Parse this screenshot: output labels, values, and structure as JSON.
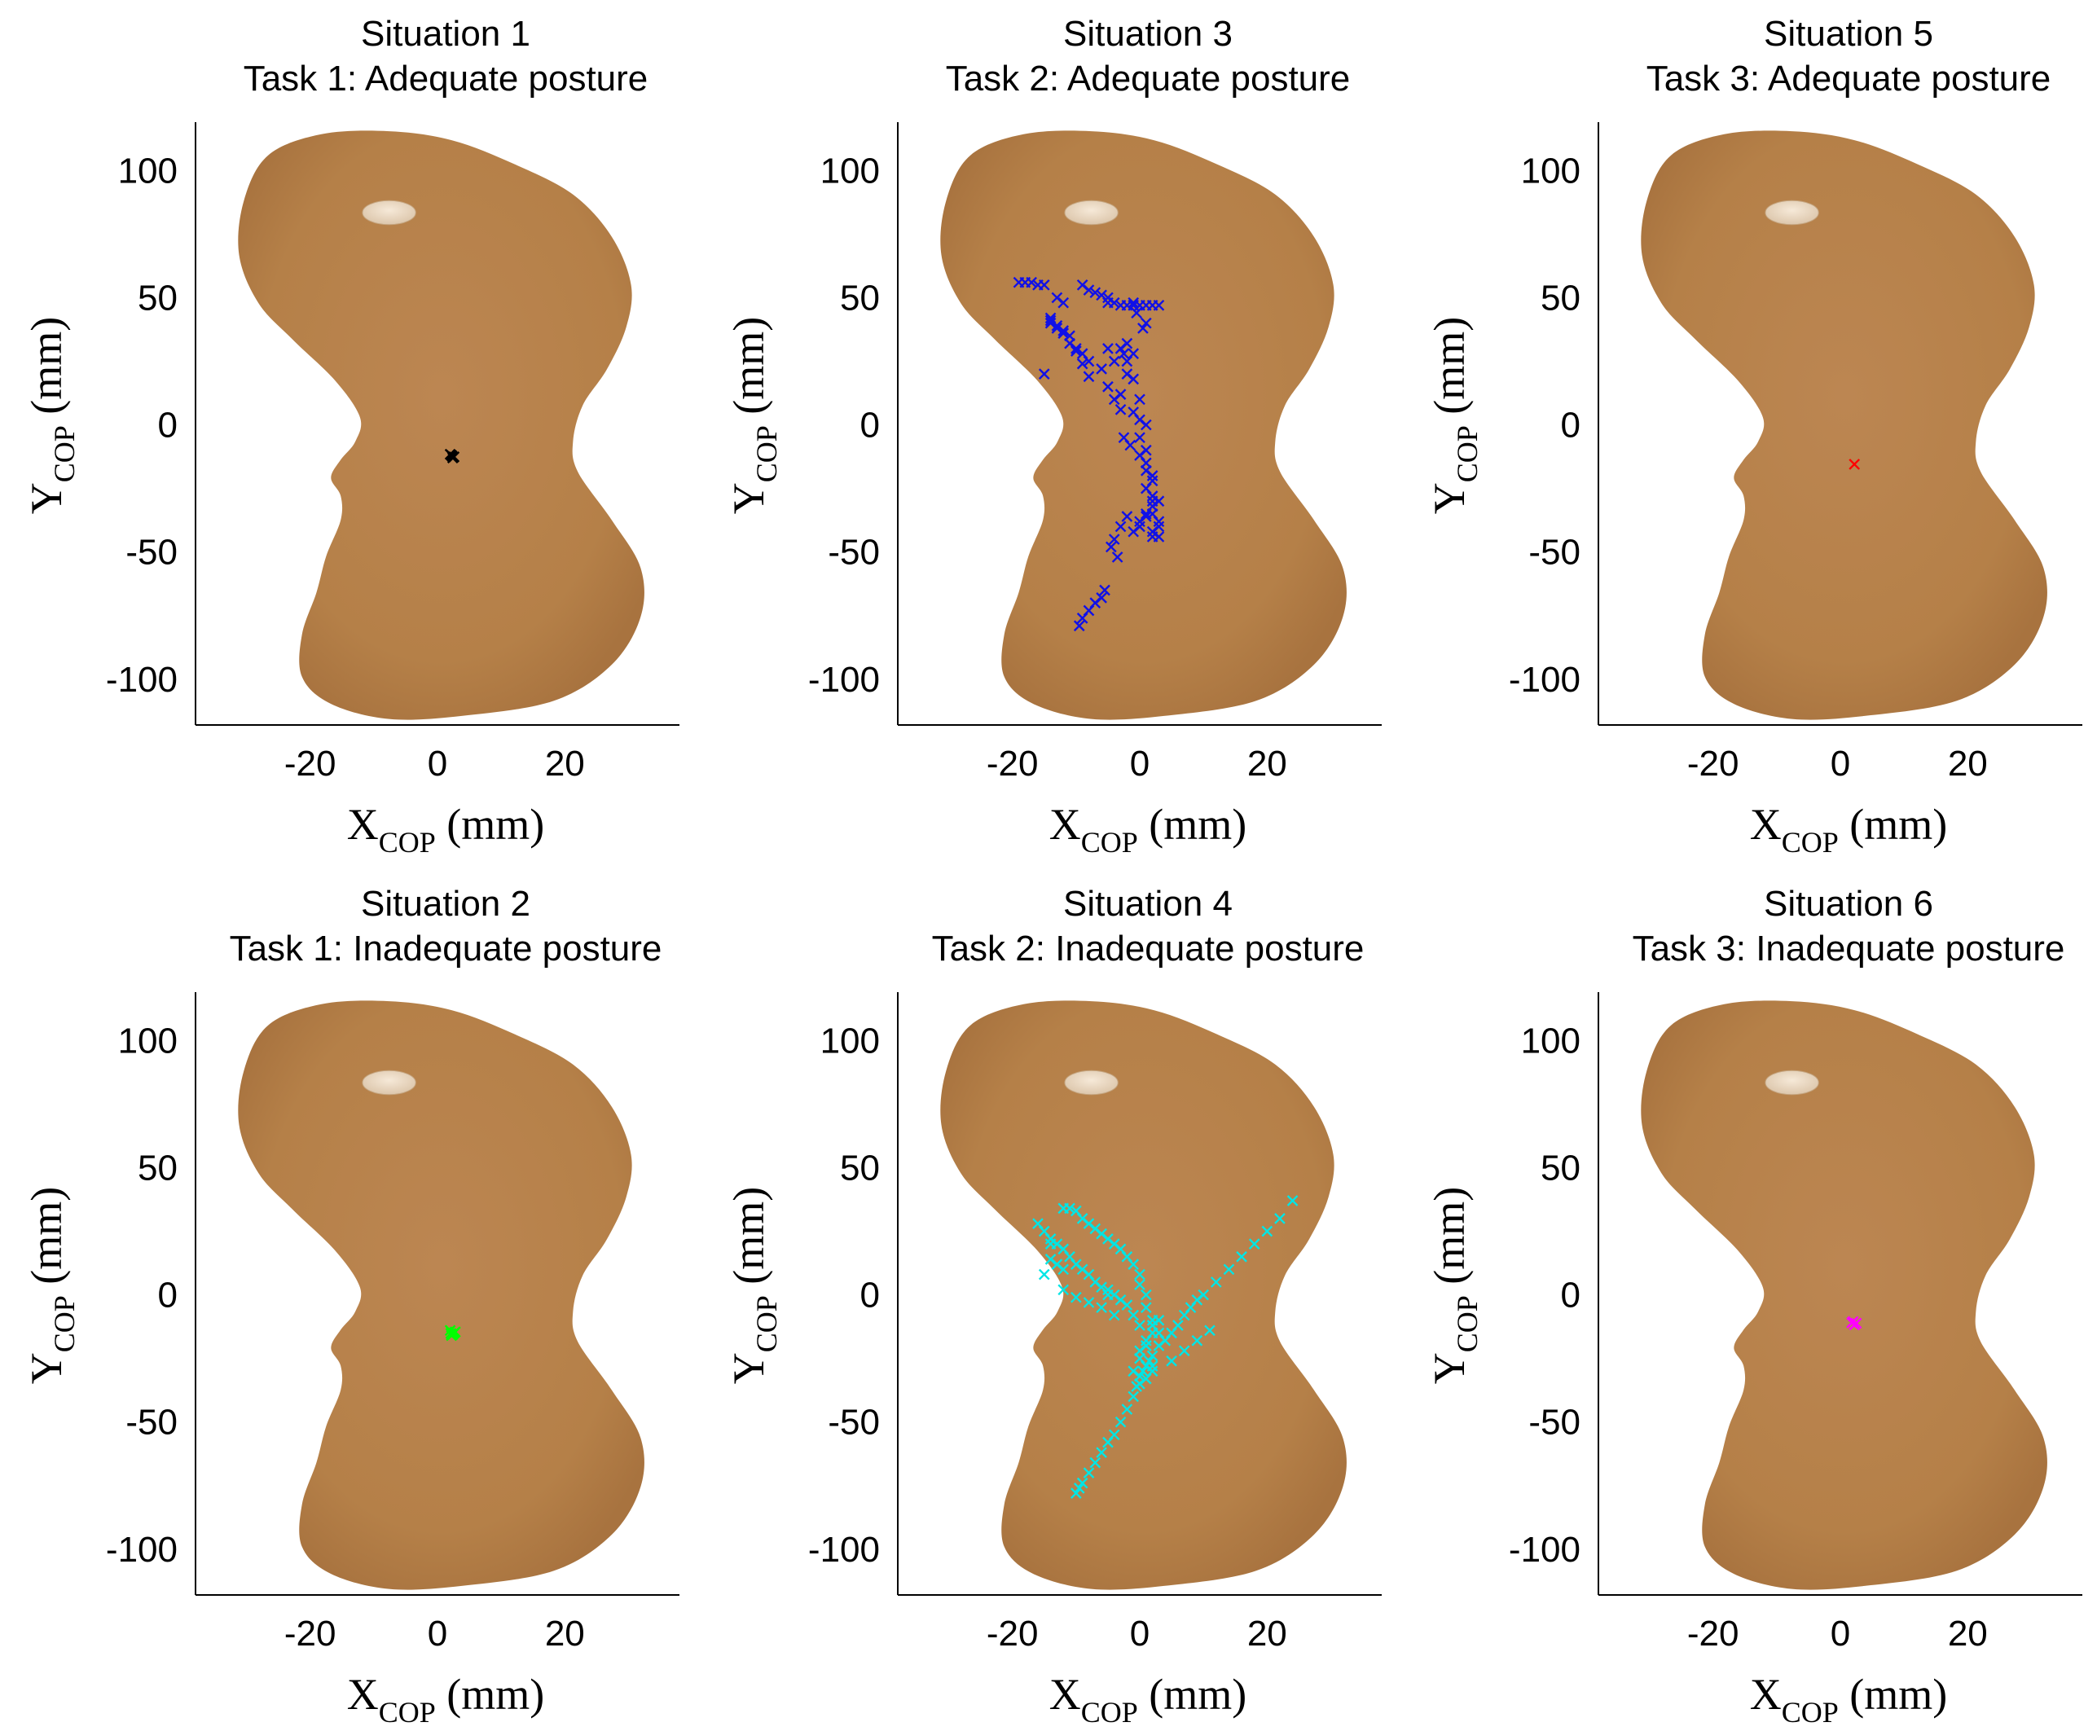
{
  "chart_data": [
    {
      "type": "scatter",
      "title": "Situation 1",
      "subtitle": "Task 1: Adequate posture",
      "xlabel": {
        "main": "X",
        "sub": "COP",
        "unit": "(mm)"
      },
      "ylabel": {
        "main": "Y",
        "sub": "COP",
        "unit": "(mm)"
      },
      "xlim": [
        -38,
        38
      ],
      "ylim": [
        -118,
        119
      ],
      "xticks": [
        "-20",
        "0",
        "20"
      ],
      "yticks": [
        "100",
        "50",
        "0",
        "-50",
        "-100"
      ],
      "marker": "x",
      "color": "#000000",
      "series": [
        {
          "x": [
            2.2,
            2.6,
            2.0,
            2.4,
            2.3
          ],
          "y": [
            -12.0,
            -12.6,
            -11.6,
            -13.0,
            -12.3
          ]
        }
      ]
    },
    {
      "type": "scatter",
      "title": "Situation 3",
      "subtitle": "Task 2: Adequate posture",
      "xlabel": {
        "main": "X",
        "sub": "COP",
        "unit": "(mm)"
      },
      "ylabel": {
        "main": "Y",
        "sub": "COP",
        "unit": "(mm)"
      },
      "xlim": [
        -38,
        38
      ],
      "ylim": [
        -118,
        119
      ],
      "xticks": [
        "-20",
        "0",
        "20"
      ],
      "yticks": [
        "100",
        "50",
        "0",
        "-50",
        "-100"
      ],
      "marker": "x",
      "color": "#1010e8",
      "series": [
        {
          "x": [
            -19,
            -18,
            -17,
            -16,
            -15,
            -14,
            -14,
            -13,
            -12,
            -11,
            -10,
            -9,
            -8,
            -14,
            -13,
            -12,
            -11,
            -10,
            -9,
            -8,
            -13,
            -12,
            -15,
            -9,
            -8,
            -7,
            -6,
            -5,
            -5,
            -4,
            -3,
            -2,
            -1,
            0,
            1,
            2,
            3,
            -5,
            -6,
            -5,
            -4,
            -3,
            -3,
            -4,
            -2,
            -1,
            -2,
            -3,
            -1,
            0,
            -1,
            0,
            1,
            0,
            1,
            1,
            2,
            1,
            2,
            1,
            2,
            2,
            1,
            0,
            -1,
            0,
            1,
            2,
            3,
            3,
            2,
            2,
            3,
            3,
            2,
            -9.5,
            -9,
            -8,
            -7,
            -6,
            -5.5,
            -4,
            -3,
            -2,
            -4.5,
            -3.5,
            -2.5,
            -1.5,
            0,
            -1,
            -0.5,
            1,
            0.5,
            -2.5,
            -2
          ],
          "y": [
            56,
            56,
            56,
            55,
            55,
            42,
            40,
            38,
            36,
            32,
            30,
            28,
            25,
            41,
            39,
            37,
            35,
            29,
            24,
            19,
            50,
            48,
            20,
            55,
            53,
            52,
            51,
            50,
            48,
            48,
            47,
            47,
            47,
            47,
            47,
            47,
            47,
            30,
            22,
            15,
            10,
            6,
            30,
            25,
            32,
            28,
            20,
            12,
            18,
            10,
            5,
            2,
            0,
            -5,
            -10,
            -15,
            -20,
            -25,
            -30,
            -18,
            -22,
            -28,
            -35,
            -38,
            -42,
            -40,
            -36,
            -32,
            -30,
            -40,
            -42,
            -44,
            -44,
            -38,
            -35,
            -79,
            -76,
            -73,
            -70,
            -68,
            -65,
            -45,
            -40,
            -36,
            -48,
            -52,
            -5,
            -8,
            -12,
            48,
            44,
            40,
            38,
            28,
            25
          ]
        }
      ]
    },
    {
      "type": "scatter",
      "title": "Situation 5",
      "subtitle": "Task 3: Adequate posture",
      "xlabel": {
        "main": "X",
        "sub": "COP",
        "unit": "(mm)"
      },
      "ylabel": {
        "main": "Y",
        "sub": "COP",
        "unit": "(mm)"
      },
      "xlim": [
        -38,
        38
      ],
      "ylim": [
        -118,
        119
      ],
      "xticks": [
        "-20",
        "0",
        "20"
      ],
      "yticks": [
        "100",
        "50",
        "0",
        "-50",
        "-100"
      ],
      "marker": "x",
      "color": "#ff0000",
      "series": [
        {
          "x": [
            2.2
          ],
          "y": [
            -15.5
          ]
        }
      ]
    },
    {
      "type": "scatter",
      "title": "Situation 2",
      "subtitle": "Task 1: Inadequate posture",
      "xlabel": {
        "main": "X",
        "sub": "COP",
        "unit": "(mm)"
      },
      "ylabel": {
        "main": "Y",
        "sub": "COP",
        "unit": "(mm)"
      },
      "xlim": [
        -38,
        38
      ],
      "ylim": [
        -118,
        119
      ],
      "xticks": [
        "-20",
        "0",
        "20"
      ],
      "yticks": [
        "100",
        "50",
        "0",
        "-50",
        "-100"
      ],
      "marker": "x",
      "color": "#00ff00",
      "series": [
        {
          "x": [
            2.0,
            2.6,
            2.2,
            2.8,
            2.4,
            2.1
          ],
          "y": [
            -14.0,
            -15.0,
            -16.0,
            -14.6,
            -15.6,
            -15.2
          ]
        }
      ]
    },
    {
      "type": "scatter",
      "title": "Situation 4",
      "subtitle": "Task 2: Inadequate posture",
      "xlabel": {
        "main": "X",
        "sub": "COP",
        "unit": "(mm)"
      },
      "ylabel": {
        "main": "Y",
        "sub": "COP",
        "unit": "(mm)"
      },
      "xlim": [
        -38,
        38
      ],
      "ylim": [
        -118,
        119
      ],
      "xticks": [
        "-20",
        "0",
        "20"
      ],
      "yticks": [
        "100",
        "50",
        "0",
        "-50",
        "-100"
      ],
      "marker": "x",
      "color": "#00e5e5",
      "series": [
        {
          "x": [
            -16,
            -15,
            -14,
            -13,
            -12,
            -11,
            -10,
            -9,
            -8,
            -7,
            -6,
            -5,
            -4,
            -3,
            -2,
            -1,
            0,
            1,
            2,
            -14,
            -13,
            -12,
            -15,
            -14,
            -12,
            -11,
            -10,
            -9,
            -8,
            -7,
            -6,
            -5,
            -4,
            -3,
            -2,
            -1,
            0,
            0,
            1,
            1,
            2,
            2,
            1,
            0,
            -1,
            0,
            1,
            2,
            2,
            3,
            4,
            5,
            6,
            7,
            8,
            9,
            10,
            12,
            14,
            16,
            18,
            20,
            22,
            24,
            5,
            7,
            9,
            11,
            -2,
            -3,
            -4,
            -5,
            -6,
            -7,
            -8,
            -9,
            -9.5,
            -10,
            -1,
            -0.5,
            0,
            0.5,
            1,
            1.5,
            -6,
            -8,
            -10,
            -12,
            -5,
            -4,
            3,
            1,
            0,
            2,
            3
          ],
          "y": [
            28,
            25,
            22,
            20,
            18,
            15,
            12,
            10,
            8,
            5,
            3,
            2,
            0,
            -2,
            -4,
            -8,
            -12,
            -20,
            -30,
            14,
            12,
            10,
            8,
            20,
            34,
            34,
            33,
            30,
            28,
            26,
            24,
            22,
            20,
            18,
            15,
            12,
            8,
            4,
            0,
            -5,
            -10,
            -15,
            -20,
            -25,
            -30,
            -35,
            -33,
            -28,
            -24,
            -20,
            -18,
            -15,
            -12,
            -8,
            -5,
            -2,
            0,
            5,
            10,
            15,
            20,
            25,
            30,
            37,
            -26,
            -22,
            -18,
            -14,
            -45,
            -50,
            -55,
            -58,
            -62,
            -66,
            -70,
            -74,
            -76,
            -78,
            -40,
            -36,
            -32,
            -30,
            -28,
            -26,
            -5,
            -3,
            -1,
            2,
            0,
            -8,
            -15,
            -18,
            -22,
            -12,
            -10
          ]
        }
      ]
    },
    {
      "type": "scatter",
      "title": "Situation 6",
      "subtitle": "Task 3: Inadequate posture",
      "xlabel": {
        "main": "X",
        "sub": "COP",
        "unit": "(mm)"
      },
      "ylabel": {
        "main": "Y",
        "sub": "COP",
        "unit": "(mm)"
      },
      "xlim": [
        -38,
        38
      ],
      "ylim": [
        -118,
        119
      ],
      "xticks": [
        "-20",
        "0",
        "20"
      ],
      "yticks": [
        "100",
        "50",
        "0",
        "-50",
        "-100"
      ],
      "marker": "x",
      "color": "#ff00ff",
      "series": [
        {
          "x": [
            2.0,
            2.5,
            2.2,
            1.8
          ],
          "y": [
            -10.5,
            -11.2,
            -11.8,
            -11.0
          ]
        }
      ]
    }
  ]
}
